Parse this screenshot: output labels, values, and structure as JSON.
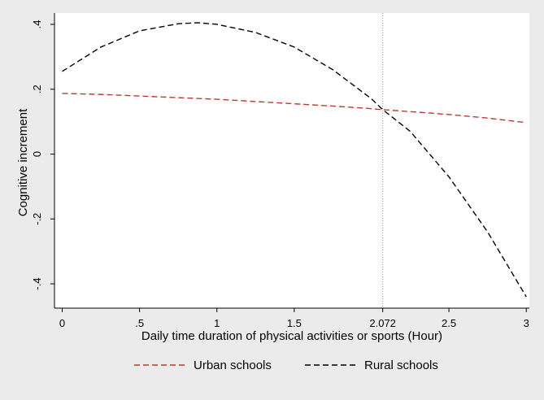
{
  "chart_data": {
    "type": "line",
    "xlabel": "Daily time duration of physical activities or sports (Hour)",
    "ylabel": "Cognitive increment",
    "xlim": [
      -0.05,
      3.02
    ],
    "ylim": [
      -0.475,
      0.435
    ],
    "x_ticks": [
      {
        "value": 0,
        "label": "0"
      },
      {
        "value": 0.5,
        "label": ".5"
      },
      {
        "value": 1,
        "label": "1"
      },
      {
        "value": 1.5,
        "label": "1.5"
      },
      {
        "value": 2.072,
        "label": "2.072"
      },
      {
        "value": 2.5,
        "label": "2.5"
      },
      {
        "value": 3,
        "label": "3"
      }
    ],
    "y_ticks": [
      {
        "value": 0.4,
        "label": ".4"
      },
      {
        "value": 0.2,
        "label": ".2"
      },
      {
        "value": 0,
        "label": "0"
      },
      {
        "value": -0.2,
        "label": "-.2"
      },
      {
        "value": -0.4,
        "label": "-.4"
      }
    ],
    "reference_line_x": 2.072,
    "grid": false,
    "legend_position": "bottom",
    "series": [
      {
        "name": "Urban schools",
        "color": "#c0392b",
        "x": [
          0,
          0.25,
          0.5,
          0.75,
          1,
          1.25,
          1.5,
          1.75,
          2,
          2.072,
          2.25,
          2.5,
          2.75,
          3
        ],
        "y": [
          0.187,
          0.184,
          0.179,
          0.174,
          0.169,
          0.162,
          0.155,
          0.148,
          0.14,
          0.137,
          0.131,
          0.122,
          0.111,
          0.097
        ]
      },
      {
        "name": "Rural schools",
        "color": "#000000",
        "x": [
          0,
          0.25,
          0.5,
          0.75,
          0.88,
          1,
          1.25,
          1.5,
          1.75,
          2,
          2.072,
          2.25,
          2.5,
          2.75,
          3
        ],
        "y": [
          0.255,
          0.33,
          0.38,
          0.402,
          0.405,
          0.4,
          0.375,
          0.33,
          0.26,
          0.17,
          0.137,
          0.07,
          -0.07,
          -0.24,
          -0.44
        ]
      }
    ]
  }
}
